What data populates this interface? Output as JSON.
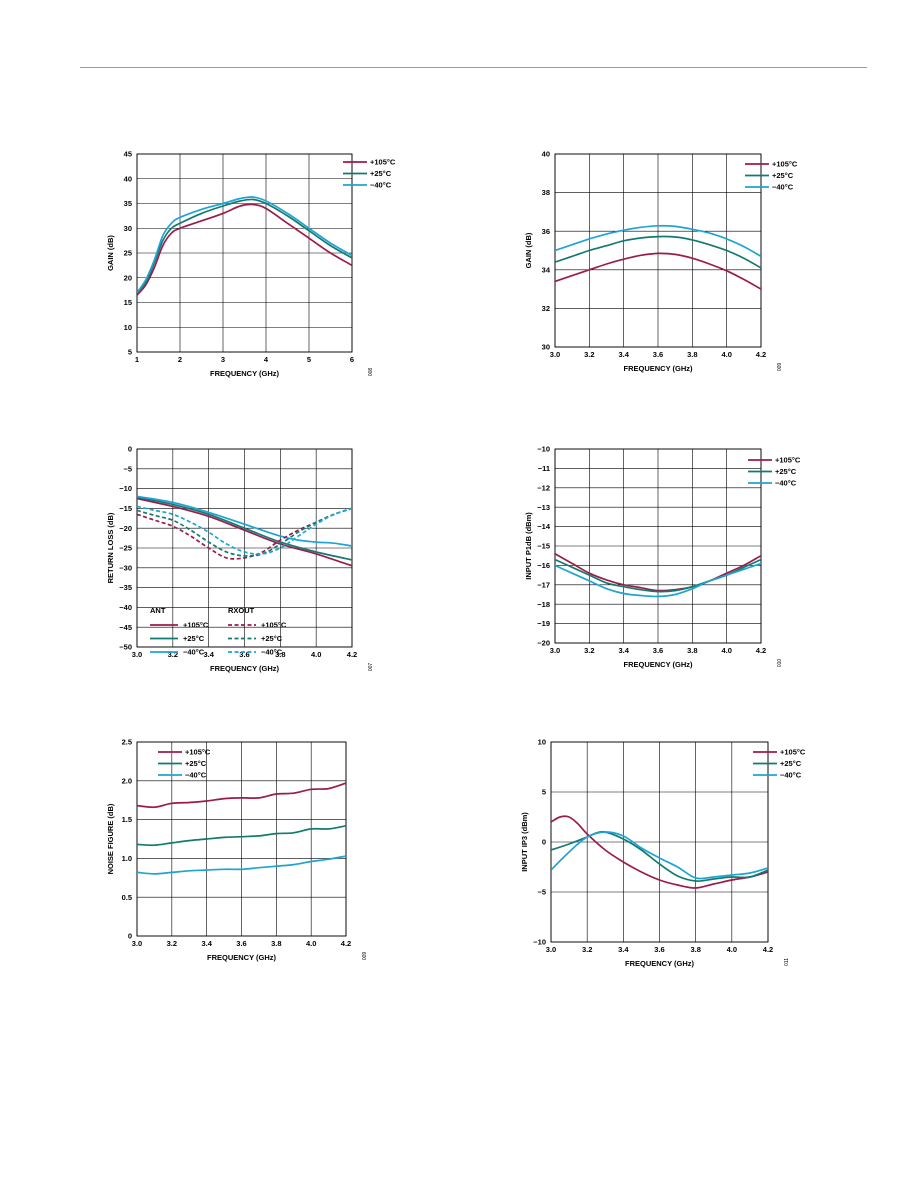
{
  "colors": {
    "hot": "#9b1b4b",
    "room": "#137a70",
    "cold": "#1ea4d2",
    "grid": "#000000"
  },
  "chart_data": [
    {
      "type": "line",
      "xlabel": "FREQUENCY (GHz)",
      "ylabel": "GAIN (dB)",
      "xlim": [
        1,
        6
      ],
      "ylim": [
        5,
        45
      ],
      "xticks": [
        1,
        2,
        3,
        4,
        5,
        6
      ],
      "xtick_labels": [
        "1",
        "2",
        "3",
        "4",
        "5",
        "6"
      ],
      "yticks": [
        5,
        10,
        15,
        20,
        25,
        30,
        35,
        40,
        45
      ],
      "ytick_labels": [
        "5",
        "10",
        "15",
        "20",
        "25",
        "30",
        "35",
        "40",
        "45"
      ],
      "grid": true,
      "legend_position": "top-right",
      "figure_id": "008",
      "series": [
        {
          "name": "+105°C",
          "color_key": "hot",
          "dash": false,
          "x": [
            1.0,
            1.2,
            1.4,
            1.6,
            1.8,
            2.0,
            2.5,
            3.0,
            3.4,
            3.7,
            4.0,
            4.5,
            5.0,
            5.5,
            6.0
          ],
          "y": [
            16.5,
            18.5,
            22,
            26.5,
            29,
            30,
            31.5,
            33,
            34.5,
            34.8,
            34,
            31,
            28,
            25,
            22.5
          ]
        },
        {
          "name": "+25°C",
          "color_key": "room",
          "dash": false,
          "x": [
            1.0,
            1.2,
            1.4,
            1.6,
            1.8,
            2.0,
            2.5,
            3.0,
            3.4,
            3.7,
            4.0,
            4.5,
            5.0,
            5.5,
            6.0
          ],
          "y": [
            17,
            19,
            23,
            27.5,
            30,
            31,
            33,
            34.5,
            35.5,
            35.8,
            35,
            32.5,
            29.5,
            26.5,
            24
          ]
        },
        {
          "name": "−40°C",
          "color_key": "cold",
          "dash": false,
          "x": [
            1.0,
            1.2,
            1.4,
            1.6,
            1.8,
            2.0,
            2.5,
            3.0,
            3.4,
            3.7,
            4.0,
            4.5,
            5.0,
            5.5,
            6.0
          ],
          "y": [
            17,
            19.5,
            23.5,
            28.5,
            31,
            32.2,
            33.8,
            35,
            36,
            36.3,
            35.5,
            33,
            30,
            27,
            24.5
          ]
        }
      ]
    },
    {
      "type": "line",
      "xlabel": "FREQUENCY (GHz)",
      "ylabel": "GAIN (dB)",
      "xlim": [
        3.0,
        4.2
      ],
      "ylim": [
        30,
        40
      ],
      "xticks": [
        3.0,
        3.2,
        3.4,
        3.6,
        3.8,
        4.0,
        4.2
      ],
      "xtick_labels": [
        "3.0",
        "3.2",
        "3.4",
        "3.6",
        "3.8",
        "4.0",
        "4.2"
      ],
      "yticks": [
        30,
        32,
        34,
        36,
        38,
        40
      ],
      "ytick_labels": [
        "30",
        "32",
        "34",
        "36",
        "38",
        "40"
      ],
      "grid": true,
      "legend_position": "top-right",
      "figure_id": "009",
      "series": [
        {
          "name": "+105°C",
          "color_key": "hot",
          "dash": false,
          "x": [
            3.0,
            3.1,
            3.2,
            3.3,
            3.4,
            3.5,
            3.6,
            3.7,
            3.8,
            3.9,
            4.0,
            4.1,
            4.2
          ],
          "y": [
            33.4,
            33.7,
            34.0,
            34.3,
            34.55,
            34.75,
            34.85,
            34.8,
            34.6,
            34.3,
            33.95,
            33.5,
            33.0
          ]
        },
        {
          "name": "+25°C",
          "color_key": "room",
          "dash": false,
          "x": [
            3.0,
            3.1,
            3.2,
            3.3,
            3.4,
            3.5,
            3.6,
            3.7,
            3.8,
            3.9,
            4.0,
            4.1,
            4.2
          ],
          "y": [
            34.4,
            34.7,
            35.0,
            35.25,
            35.5,
            35.65,
            35.72,
            35.7,
            35.55,
            35.3,
            35.0,
            34.6,
            34.1
          ]
        },
        {
          "name": "−40°C",
          "color_key": "cold",
          "dash": false,
          "x": [
            3.0,
            3.1,
            3.2,
            3.3,
            3.4,
            3.5,
            3.6,
            3.7,
            3.8,
            3.9,
            4.0,
            4.1,
            4.2
          ],
          "y": [
            35.0,
            35.3,
            35.6,
            35.85,
            36.05,
            36.2,
            36.28,
            36.25,
            36.1,
            35.9,
            35.6,
            35.2,
            34.7
          ]
        }
      ]
    },
    {
      "type": "line",
      "xlabel": "FREQUENCY (GHz)",
      "ylabel": "RETURN LOSS (dB)",
      "xlim": [
        3.0,
        4.2
      ],
      "ylim": [
        -50,
        0
      ],
      "xticks": [
        3.0,
        3.2,
        3.4,
        3.6,
        3.8,
        4.0,
        4.2
      ],
      "xtick_labels": [
        "3.0",
        "3.2",
        "3.4",
        "3.6",
        "3.8",
        "4.0",
        "4.2"
      ],
      "yticks": [
        -50,
        -45,
        -40,
        -35,
        -30,
        -25,
        -20,
        -15,
        -10,
        -5,
        0
      ],
      "ytick_labels": [
        "−50",
        "−45",
        "−40",
        "−35",
        "−30",
        "−25",
        "−20",
        "−15",
        "−10",
        "−5",
        "0"
      ],
      "grid": true,
      "legend_position": "bottom-left",
      "legend_groups": [
        "ANT",
        "RXOUT"
      ],
      "figure_id": "007",
      "series": [
        {
          "name": "+105°C",
          "group": "ANT",
          "color_key": "hot",
          "dash": false,
          "x": [
            3.0,
            3.2,
            3.4,
            3.6,
            3.8,
            4.0,
            4.2
          ],
          "y": [
            -12.5,
            -14.5,
            -17,
            -20.5,
            -24,
            -26.5,
            -29.5
          ]
        },
        {
          "name": "+25°C",
          "group": "ANT",
          "color_key": "room",
          "dash": false,
          "x": [
            3.0,
            3.2,
            3.4,
            3.6,
            3.8,
            4.0,
            4.2
          ],
          "y": [
            -12.2,
            -14,
            -16.5,
            -20,
            -23.5,
            -26,
            -28
          ]
        },
        {
          "name": "−40°C",
          "group": "ANT",
          "color_key": "cold",
          "dash": false,
          "x": [
            3.0,
            3.2,
            3.4,
            3.6,
            3.8,
            3.9,
            4.0,
            4.1,
            4.2
          ],
          "y": [
            -12,
            -13.5,
            -16,
            -19,
            -22,
            -23,
            -23.5,
            -23.8,
            -24.5
          ]
        },
        {
          "name": "+105°C",
          "group": "RXOUT",
          "color_key": "hot",
          "dash": true,
          "x": [
            3.0,
            3.1,
            3.2,
            3.3,
            3.4,
            3.5,
            3.6,
            3.7,
            3.8,
            3.9,
            4.0,
            4.1,
            4.2
          ],
          "y": [
            -16.5,
            -18,
            -19.5,
            -22,
            -25,
            -27.5,
            -27.5,
            -26,
            -23,
            -20.5,
            -18.5,
            -16.5,
            -15
          ]
        },
        {
          "name": "+25°C",
          "group": "RXOUT",
          "color_key": "room",
          "dash": true,
          "x": [
            3.0,
            3.1,
            3.2,
            3.3,
            3.4,
            3.5,
            3.6,
            3.7,
            3.8,
            3.9,
            4.0,
            4.1,
            4.2
          ],
          "y": [
            -15.5,
            -16.8,
            -18,
            -20.5,
            -23.5,
            -26,
            -27,
            -26.5,
            -24,
            -21,
            -18.5,
            -16.5,
            -15
          ]
        },
        {
          "name": "−40°C",
          "group": "RXOUT",
          "color_key": "cold",
          "dash": true,
          "x": [
            3.0,
            3.1,
            3.2,
            3.3,
            3.4,
            3.5,
            3.6,
            3.7,
            3.8,
            3.9,
            4.0,
            4.1,
            4.2
          ],
          "y": [
            -14.5,
            -15.5,
            -16.5,
            -18.5,
            -21,
            -24,
            -26,
            -26.5,
            -25,
            -22,
            -19,
            -16.5,
            -15
          ]
        }
      ]
    },
    {
      "type": "line",
      "xlabel": "FREQUENCY (GHz)",
      "ylabel": "INPUT P1dB (dBm)",
      "xlim": [
        3.0,
        4.2
      ],
      "ylim": [
        -20,
        -10
      ],
      "xticks": [
        3.0,
        3.2,
        3.4,
        3.6,
        3.8,
        4.0,
        4.2
      ],
      "xtick_labels": [
        "3.0",
        "3.2",
        "3.4",
        "3.6",
        "3.8",
        "4.0",
        "4.2"
      ],
      "yticks": [
        -20,
        -19,
        -18,
        -17,
        -16,
        -15,
        -14,
        -13,
        -12,
        -11,
        -10
      ],
      "ytick_labels": [
        "−20",
        "−19",
        "−18",
        "−17",
        "−16",
        "−15",
        "−14",
        "−13",
        "−12",
        "−11",
        "−10"
      ],
      "grid": true,
      "legend_position": "top-right",
      "figure_id": "010",
      "series": [
        {
          "name": "+105°C",
          "color_key": "hot",
          "dash": false,
          "x": [
            3.0,
            3.1,
            3.2,
            3.3,
            3.4,
            3.5,
            3.6,
            3.7,
            3.8,
            3.9,
            4.0,
            4.1,
            4.2
          ],
          "y": [
            -15.4,
            -15.9,
            -16.4,
            -16.75,
            -17.0,
            -17.15,
            -17.3,
            -17.25,
            -17.1,
            -16.8,
            -16.4,
            -16.0,
            -15.5
          ]
        },
        {
          "name": "+25°C",
          "color_key": "room",
          "dash": false,
          "x": [
            3.0,
            3.1,
            3.2,
            3.3,
            3.4,
            3.5,
            3.6,
            3.7,
            3.8,
            3.9,
            4.0,
            4.1,
            4.2
          ],
          "y": [
            -15.7,
            -16.1,
            -16.5,
            -16.9,
            -17.1,
            -17.25,
            -17.35,
            -17.3,
            -17.1,
            -16.8,
            -16.5,
            -16.1,
            -15.7
          ]
        },
        {
          "name": "−40°C",
          "color_key": "cold",
          "dash": false,
          "x": [
            3.0,
            3.1,
            3.2,
            3.3,
            3.4,
            3.5,
            3.6,
            3.7,
            3.8,
            3.9,
            4.0,
            4.1,
            4.2
          ],
          "y": [
            -16.0,
            -16.4,
            -16.8,
            -17.2,
            -17.45,
            -17.55,
            -17.6,
            -17.5,
            -17.2,
            -16.8,
            -16.5,
            -16.2,
            -15.9
          ]
        }
      ]
    },
    {
      "type": "line",
      "xlabel": "FREQUENCY (GHz)",
      "ylabel": "NOISE FIGURE (dB)",
      "xlim": [
        3.0,
        4.2
      ],
      "ylim": [
        0,
        2.5
      ],
      "xticks": [
        3.0,
        3.2,
        3.4,
        3.6,
        3.8,
        4.0,
        4.2
      ],
      "xtick_labels": [
        "3.0",
        "3.2",
        "3.4",
        "3.6",
        "3.8",
        "4.0",
        "4.2"
      ],
      "yticks": [
        0,
        0.5,
        1.0,
        1.5,
        2.0,
        2.5
      ],
      "ytick_labels": [
        "0",
        "0.5",
        "1.0",
        "1.5",
        "2.0",
        "2.5"
      ],
      "grid": true,
      "legend_position": "top-left",
      "figure_id": "009",
      "series": [
        {
          "name": "+105°C",
          "color_key": "hot",
          "dash": false,
          "x": [
            3.0,
            3.1,
            3.2,
            3.3,
            3.4,
            3.5,
            3.6,
            3.7,
            3.8,
            3.9,
            4.0,
            4.1,
            4.2
          ],
          "y": [
            1.68,
            1.66,
            1.71,
            1.72,
            1.74,
            1.77,
            1.78,
            1.78,
            1.83,
            1.84,
            1.89,
            1.9,
            1.97
          ]
        },
        {
          "name": "+25°C",
          "color_key": "room",
          "dash": false,
          "x": [
            3.0,
            3.1,
            3.2,
            3.3,
            3.4,
            3.5,
            3.6,
            3.7,
            3.8,
            3.9,
            4.0,
            4.1,
            4.2
          ],
          "y": [
            1.18,
            1.17,
            1.2,
            1.23,
            1.25,
            1.27,
            1.28,
            1.29,
            1.32,
            1.33,
            1.38,
            1.38,
            1.42
          ]
        },
        {
          "name": "−40°C",
          "color_key": "cold",
          "dash": false,
          "x": [
            3.0,
            3.1,
            3.2,
            3.3,
            3.4,
            3.5,
            3.6,
            3.7,
            3.8,
            3.9,
            4.0,
            4.1,
            4.2
          ],
          "y": [
            0.82,
            0.8,
            0.82,
            0.84,
            0.85,
            0.86,
            0.86,
            0.88,
            0.9,
            0.92,
            0.96,
            0.99,
            1.03
          ]
        }
      ]
    },
    {
      "type": "line",
      "xlabel": "FREQUENCY (GHz)",
      "ylabel": "INPUT IP3 (dBm)",
      "xlim": [
        3.0,
        4.2
      ],
      "ylim": [
        -10,
        10
      ],
      "xticks": [
        3.0,
        3.2,
        3.4,
        3.6,
        3.8,
        4.0,
        4.2
      ],
      "xtick_labels": [
        "3.0",
        "3.2",
        "3.4",
        "3.6",
        "3.8",
        "4.0",
        "4.2"
      ],
      "yticks": [
        -10,
        -5,
        0,
        5,
        10
      ],
      "ytick_labels": [
        "−10",
        "−5",
        "0",
        "5",
        "10"
      ],
      "grid": true,
      "legend_position": "top-right",
      "figure_id": "011",
      "series": [
        {
          "name": "+105°C",
          "color_key": "hot",
          "dash": false,
          "x": [
            3.0,
            3.05,
            3.1,
            3.15,
            3.2,
            3.3,
            3.4,
            3.5,
            3.6,
            3.7,
            3.8,
            3.9,
            4.0,
            4.1,
            4.2
          ],
          "y": [
            2.0,
            2.5,
            2.5,
            1.8,
            0.8,
            -0.8,
            -2.0,
            -3.0,
            -3.8,
            -4.3,
            -4.6,
            -4.2,
            -3.8,
            -3.5,
            -3.0
          ]
        },
        {
          "name": "+25°C",
          "color_key": "room",
          "dash": false,
          "x": [
            3.0,
            3.1,
            3.2,
            3.25,
            3.3,
            3.4,
            3.5,
            3.6,
            3.7,
            3.8,
            3.9,
            4.0,
            4.1,
            4.2
          ],
          "y": [
            -0.8,
            -0.2,
            0.5,
            0.9,
            1.0,
            0.3,
            -0.8,
            -2.2,
            -3.4,
            -3.9,
            -3.7,
            -3.5,
            -3.5,
            -2.8
          ]
        },
        {
          "name": "−40°C",
          "color_key": "cold",
          "dash": false,
          "x": [
            3.0,
            3.1,
            3.2,
            3.3,
            3.4,
            3.5,
            3.6,
            3.7,
            3.8,
            3.9,
            4.0,
            4.1,
            4.2
          ],
          "y": [
            -2.8,
            -1.0,
            0.5,
            1.0,
            0.6,
            -0.6,
            -1.6,
            -2.5,
            -3.6,
            -3.5,
            -3.3,
            -3.1,
            -2.6
          ]
        }
      ]
    }
  ]
}
